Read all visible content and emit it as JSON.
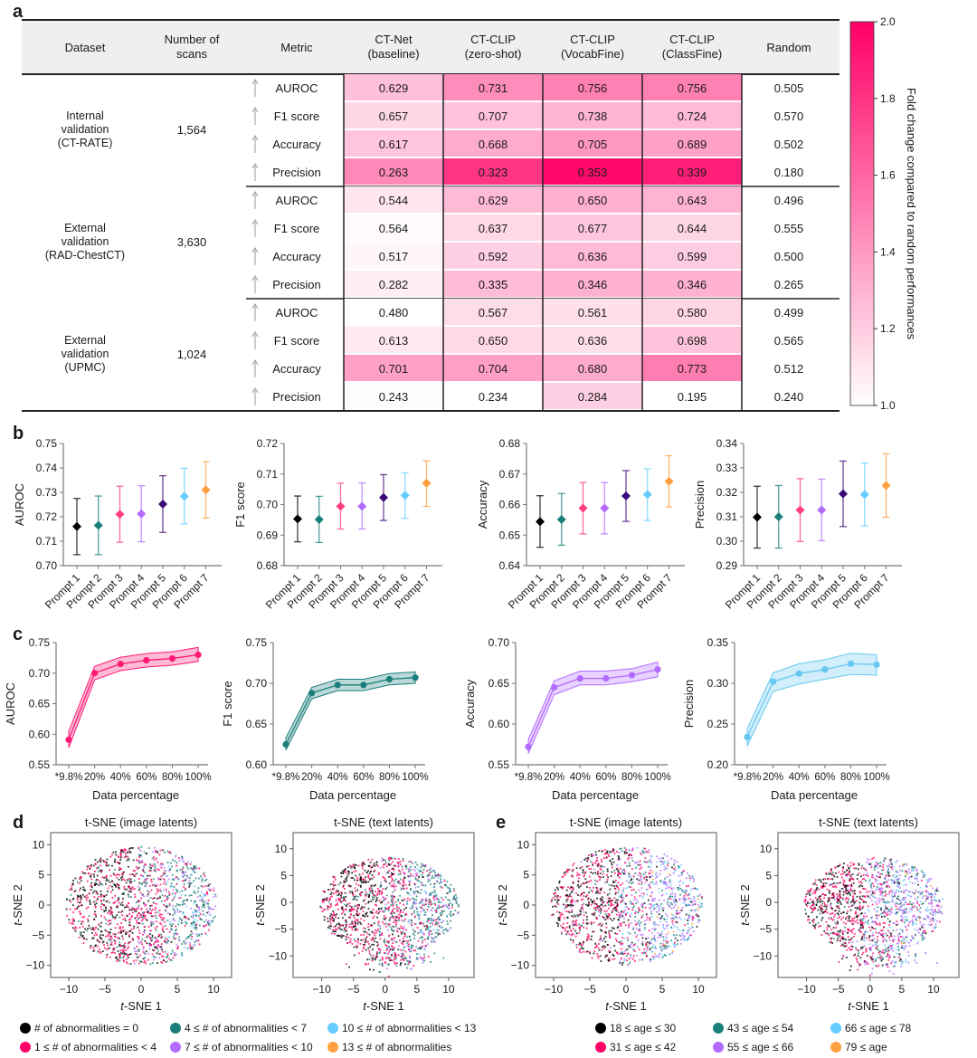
{
  "panel_labels": {
    "a": "a",
    "b": "b",
    "c": "c",
    "d": "d",
    "e": "e"
  },
  "chart_data": [
    {
      "id": "a",
      "type": "table",
      "columns": [
        "Dataset",
        "Number of scans",
        "Metric",
        "CT-Net (baseline)",
        "CT-CLIP (zero-shot)",
        "CT-CLIP (VocabFine)",
        "CT-CLIP (ClassFine)",
        "Random"
      ],
      "column_lines": [
        [
          "Dataset"
        ],
        [
          "Number of",
          "scans"
        ],
        [
          "Metric"
        ],
        [
          "CT-Net",
          "(baseline)"
        ],
        [
          "CT-CLIP",
          "(zero-shot)"
        ],
        [
          "CT-CLIP",
          "(VocabFine)"
        ],
        [
          "CT-CLIP",
          "(ClassFine)"
        ],
        [
          "Random"
        ]
      ],
      "metric_arrow": "↑",
      "groups": [
        {
          "dataset_lines": [
            "Internal",
            "validation",
            "(CT-RATE)"
          ],
          "scans": "1,564",
          "rows": [
            {
              "metric": "AUROC",
              "values": [
                0.629,
                0.731,
                0.756,
                0.756
              ],
              "random": 0.505
            },
            {
              "metric": "F1 score",
              "values": [
                0.657,
                0.707,
                0.738,
                0.724
              ],
              "random": 0.57
            },
            {
              "metric": "Accuracy",
              "values": [
                0.617,
                0.668,
                0.705,
                0.689
              ],
              "random": 0.502
            },
            {
              "metric": "Precision",
              "values": [
                0.263,
                0.323,
                0.353,
                0.339
              ],
              "random": 0.18
            }
          ]
        },
        {
          "dataset_lines": [
            "External",
            "validation",
            "(RAD-ChestCT)"
          ],
          "scans": "3,630",
          "rows": [
            {
              "metric": "AUROC",
              "values": [
                0.544,
                0.629,
                0.65,
                0.643
              ],
              "random": 0.496
            },
            {
              "metric": "F1 score",
              "values": [
                0.564,
                0.637,
                0.677,
                0.644
              ],
              "random": 0.555
            },
            {
              "metric": "Accuracy",
              "values": [
                0.517,
                0.592,
                0.636,
                0.599
              ],
              "random": 0.5
            },
            {
              "metric": "Precision",
              "values": [
                0.282,
                0.335,
                0.346,
                0.346
              ],
              "random": 0.265
            }
          ]
        },
        {
          "dataset_lines": [
            "External",
            "validation",
            "(UPMC)"
          ],
          "scans": "1,024",
          "rows": [
            {
              "metric": "AUROC",
              "values": [
                0.48,
                0.567,
                0.561,
                0.58
              ],
              "random": 0.499
            },
            {
              "metric": "F1 score",
              "values": [
                0.613,
                0.65,
                0.636,
                0.698
              ],
              "random": 0.565
            },
            {
              "metric": "Accuracy",
              "values": [
                0.701,
                0.704,
                0.68,
                0.773
              ],
              "random": 0.512
            },
            {
              "metric": "Precision",
              "values": [
                0.243,
                0.234,
                0.284,
                0.195
              ],
              "random": 0.24
            }
          ]
        }
      ],
      "colorbar": {
        "label": "Fold change compared to random performances",
        "range": [
          1.0,
          2.0
        ],
        "ticks": [
          "1.0",
          "1.2",
          "1.4",
          "1.6",
          "1.8",
          "2.0"
        ],
        "low_color": "#ffffff",
        "high_color": "#ff0066"
      }
    },
    {
      "id": "b",
      "type": "scatter",
      "subtype": "errorbar",
      "categories": [
        "Prompt 1",
        "Prompt 2",
        "Prompt 3",
        "Prompt 4",
        "Prompt 5",
        "Prompt 6",
        "Prompt 7"
      ],
      "colors": [
        "#000000",
        "#1a7f7a",
        "#ff3d7f",
        "#b36bff",
        "#3d0a78",
        "#66ccff",
        "#ffa040"
      ],
      "marker": "diamond",
      "plots": [
        {
          "ylabel": "AUROC",
          "ylim": [
            0.7,
            0.75
          ],
          "ticks": [
            "0.70",
            "0.71",
            "0.72",
            "0.73",
            "0.74",
            "0.75"
          ],
          "values": [
            0.716,
            0.7165,
            0.721,
            0.7212,
            0.7252,
            0.7284,
            0.731
          ],
          "lower": [
            0.7045,
            0.7045,
            0.7096,
            0.7098,
            0.7136,
            0.7171,
            0.7195
          ],
          "upper": [
            0.7275,
            0.7285,
            0.7325,
            0.7327,
            0.7368,
            0.7398,
            0.7425
          ]
        },
        {
          "ylabel": "F1 score",
          "ylim": [
            0.68,
            0.72
          ],
          "ticks": [
            "0.68",
            "0.69",
            "0.70",
            "0.71",
            "0.72"
          ],
          "values": [
            0.6953,
            0.6951,
            0.6994,
            0.6994,
            0.7023,
            0.703,
            0.707
          ],
          "lower": [
            0.6878,
            0.6876,
            0.692,
            0.692,
            0.6948,
            0.6955,
            0.6994
          ],
          "upper": [
            0.7028,
            0.7027,
            0.707,
            0.7071,
            0.7098,
            0.7104,
            0.7143
          ]
        },
        {
          "ylabel": "Accuracy",
          "ylim": [
            0.64,
            0.68
          ],
          "ticks": [
            "0.64",
            "0.65",
            "0.66",
            "0.67",
            "0.68"
          ],
          "values": [
            0.6544,
            0.6551,
            0.6588,
            0.6588,
            0.6628,
            0.6633,
            0.6676
          ],
          "lower": [
            0.646,
            0.6467,
            0.6504,
            0.6504,
            0.6545,
            0.6548,
            0.6592
          ],
          "upper": [
            0.6629,
            0.6636,
            0.6672,
            0.6672,
            0.6711,
            0.6717,
            0.676
          ]
        },
        {
          "ylabel": "Precision",
          "ylim": [
            0.29,
            0.34
          ],
          "ticks": [
            "0.29",
            "0.30",
            "0.31",
            "0.32",
            "0.33",
            "0.34"
          ],
          "values": [
            0.3098,
            0.31,
            0.3128,
            0.3128,
            0.3194,
            0.3191,
            0.3228
          ],
          "lower": [
            0.2972,
            0.2972,
            0.2999,
            0.3002,
            0.306,
            0.3063,
            0.3098
          ],
          "upper": [
            0.3225,
            0.3228,
            0.3256,
            0.3254,
            0.3328,
            0.332,
            0.3358
          ]
        }
      ]
    },
    {
      "id": "c",
      "type": "line",
      "x": [
        "*9.8%",
        "20%",
        "40%",
        "60%",
        "80%",
        "100%"
      ],
      "xlabel": "Data percentage",
      "plots": [
        {
          "ylabel": "AUROC",
          "color": "#ff1a75",
          "ylim": [
            0.55,
            0.75
          ],
          "ticks": [
            "0.55",
            "0.60",
            "0.65",
            "0.70",
            "0.75"
          ],
          "values": [
            0.591,
            0.7,
            0.715,
            0.721,
            0.724,
            0.73
          ],
          "lower": [
            0.578,
            0.689,
            0.704,
            0.71,
            0.713,
            0.719
          ],
          "upper": [
            0.605,
            0.711,
            0.726,
            0.732,
            0.735,
            0.742
          ]
        },
        {
          "ylabel": "F1 score",
          "color": "#1a7f7a",
          "ylim": [
            0.6,
            0.75
          ],
          "ticks": [
            "0.60",
            "0.65",
            "0.70",
            "0.75"
          ],
          "values": [
            0.625,
            0.688,
            0.698,
            0.698,
            0.705,
            0.707
          ],
          "lower": [
            0.618,
            0.681,
            0.691,
            0.691,
            0.698,
            0.7
          ],
          "upper": [
            0.633,
            0.695,
            0.705,
            0.705,
            0.712,
            0.714
          ]
        },
        {
          "ylabel": "Accuracy",
          "color": "#b36bff",
          "ylim": [
            0.55,
            0.7
          ],
          "ticks": [
            "0.55",
            "0.60",
            "0.65",
            "0.70"
          ],
          "values": [
            0.572,
            0.645,
            0.656,
            0.656,
            0.66,
            0.667
          ],
          "lower": [
            0.564,
            0.636,
            0.648,
            0.648,
            0.652,
            0.658
          ],
          "upper": [
            0.581,
            0.653,
            0.665,
            0.665,
            0.668,
            0.676
          ]
        },
        {
          "ylabel": "Precision",
          "color": "#66c8f0",
          "ylim": [
            0.2,
            0.35
          ],
          "ticks": [
            "0.20",
            "0.25",
            "0.30",
            "0.35"
          ],
          "values": [
            0.234,
            0.302,
            0.312,
            0.317,
            0.324,
            0.323
          ],
          "lower": [
            0.223,
            0.29,
            0.299,
            0.305,
            0.311,
            0.31
          ],
          "upper": [
            0.244,
            0.313,
            0.324,
            0.329,
            0.337,
            0.335
          ]
        }
      ]
    },
    {
      "id": "d",
      "type": "scatter",
      "xlabel": "t-SNE 1",
      "ylabel": "t-SNE 2",
      "subplots": [
        {
          "title": "t-SNE (image latents)",
          "xticks": [
            "−10",
            "−5",
            "0",
            "5",
            "10"
          ],
          "yticks": [
            "−10",
            "−5",
            "0",
            "5",
            "10"
          ],
          "xlim": [
            -12.5,
            12.5
          ],
          "ylim": [
            -12,
            12
          ]
        },
        {
          "title": "t-SNE (text latents)",
          "xticks": [
            "−10",
            "−5",
            "0",
            "5",
            "10"
          ],
          "yticks": [
            "−10",
            "−5",
            "0",
            "5",
            "10"
          ],
          "xlim": [
            -14.5,
            14
          ],
          "ylim": [
            -14,
            13
          ]
        }
      ],
      "legend": [
        {
          "label": "# of abnormalities = 0",
          "color": "#000000"
        },
        {
          "label": "4 ≤ # of abnormalities < 7",
          "color": "#1a7f7a"
        },
        {
          "label": "10 ≤ # of abnormalities < 13",
          "color": "#66ccff"
        },
        {
          "label": "1 ≤ # of abnormalities < 4",
          "color": "#ff0066"
        },
        {
          "label": "7 ≤ # of abnormalities < 10",
          "color": "#b36bff"
        },
        {
          "label": "13 ≤ # of abnormalities",
          "color": "#ffa040"
        }
      ]
    },
    {
      "id": "e",
      "type": "scatter",
      "xlabel": "t-SNE 1",
      "ylabel": "t-SNE 2",
      "subplots": [
        {
          "title": "t-SNE (image latents)",
          "xticks": [
            "−10",
            "−5",
            "0",
            "5",
            "10"
          ],
          "yticks": [
            "−10",
            "−5",
            "0",
            "5",
            "10"
          ],
          "xlim": [
            -12.5,
            12.5
          ],
          "ylim": [
            -12,
            12
          ]
        },
        {
          "title": "t-SNE (text latents)",
          "xticks": [
            "−10",
            "−5",
            "0",
            "5",
            "10"
          ],
          "yticks": [
            "−10",
            "−5",
            "0",
            "5",
            "10"
          ],
          "xlim": [
            -14.5,
            14
          ],
          "ylim": [
            -14,
            13
          ]
        }
      ],
      "legend": [
        {
          "label": "18 ≤ age ≤ 30",
          "color": "#000000"
        },
        {
          "label": "43 ≤ age ≤ 54",
          "color": "#1a7f7a"
        },
        {
          "label": "66 ≤ age ≤ 78",
          "color": "#66ccff"
        },
        {
          "label": "31 ≤ age ≤ 42",
          "color": "#ff0066"
        },
        {
          "label": "55 ≤ age ≤ 66",
          "color": "#b36bff"
        },
        {
          "label": "79 ≤ age",
          "color": "#ffa040"
        }
      ]
    }
  ]
}
